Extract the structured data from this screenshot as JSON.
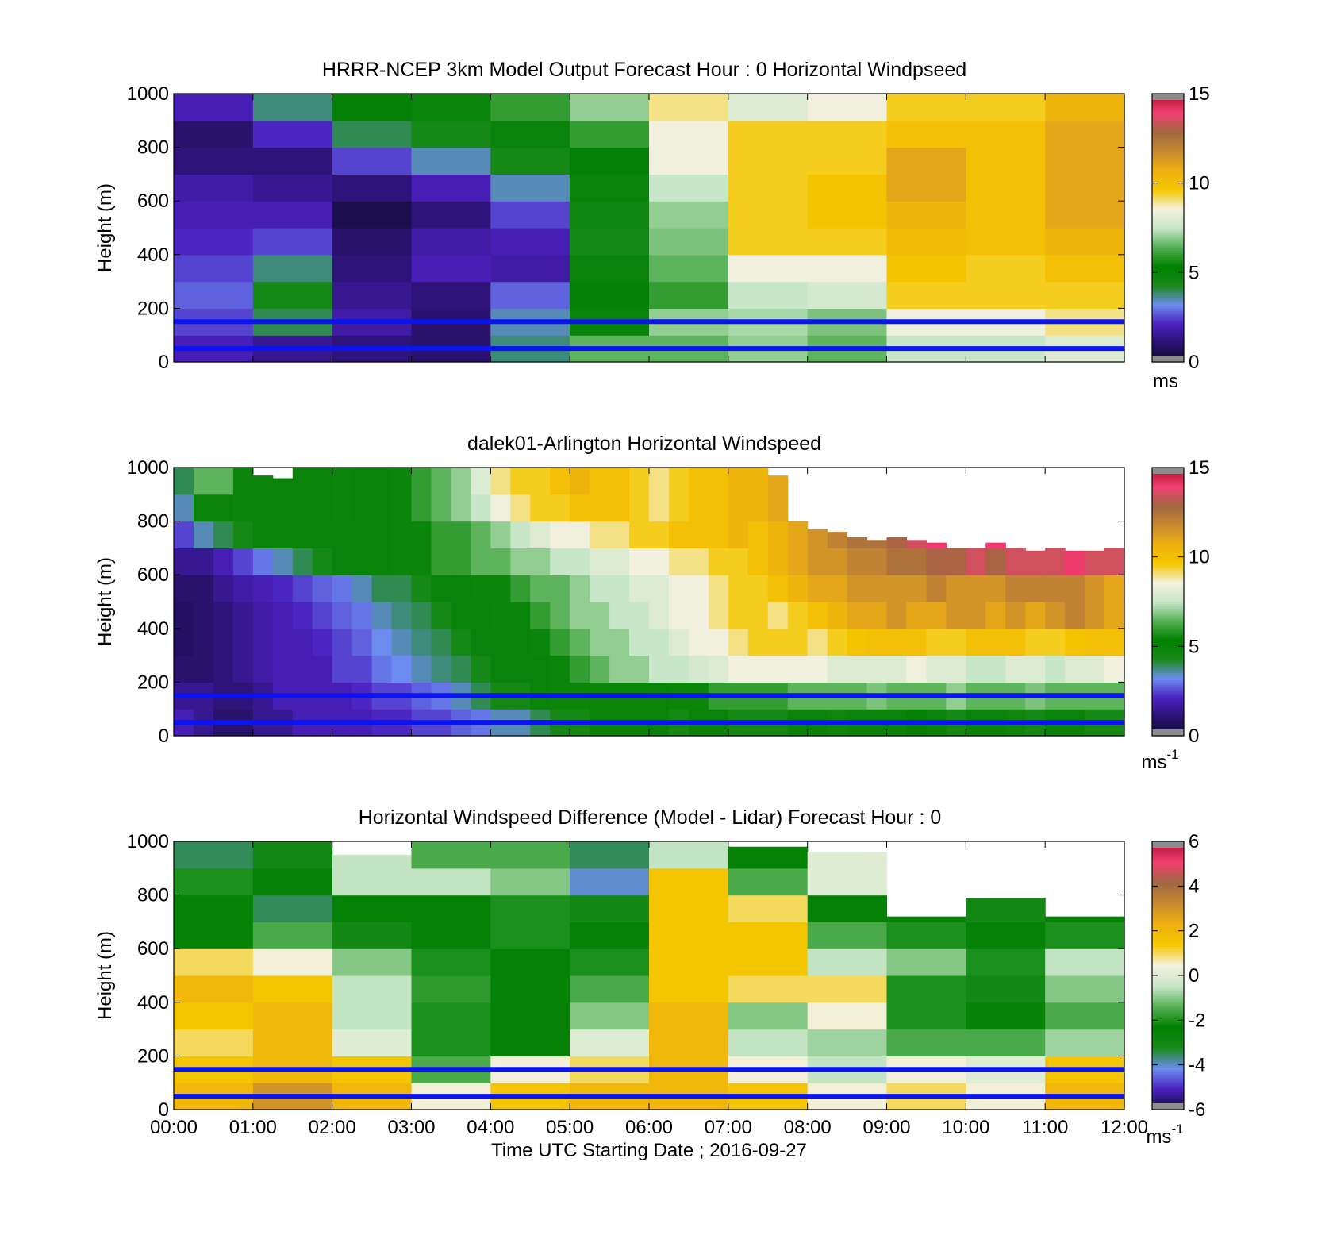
{
  "colormap_speed": [
    "#0e0b30",
    "#2a1270",
    "#4a20c0",
    "#6c8cf0",
    "#1a8a1a",
    "#008000",
    "#55b055",
    "#c8e6c8",
    "#f4f1e0",
    "#f5c800",
    "#efb010",
    "#c88a30",
    "#a06840",
    "#f04070",
    "#b01030"
  ],
  "colormap_diff": [
    "#0e0b30",
    "#4a20c0",
    "#6c8cf0",
    "#1a8a1a",
    "#008000",
    "#55b055",
    "#c8e6c8",
    "#f4f1e0",
    "#f5c800",
    "#efb010",
    "#c88a30",
    "#a06840",
    "#f04070",
    "#b01030"
  ],
  "chart_data": [
    {
      "type": "heatmap",
      "title": "HRRR-NCEP 3km Model Output   Forecast Hour : 0 Horizontal Windpseed",
      "ylabel": "Height (m)",
      "xlabel": "",
      "ylim": [
        0,
        1000
      ],
      "yticks": [
        "0",
        "200",
        "400",
        "600",
        "800",
        "1000"
      ],
      "clim": [
        0,
        15
      ],
      "cticks": [
        "0",
        "5",
        "10",
        "15"
      ],
      "unit": "ms",
      "unit_sup": "",
      "hlines": [
        50,
        150
      ],
      "columns": 12,
      "rows": 10,
      "values": [
        [
          2.0,
          1.5,
          1.2,
          1.0,
          3.8,
          6.5,
          6.5,
          7.0,
          6.5,
          7.5,
          7.5,
          8.0
        ],
        [
          2.5,
          4.0,
          1.8,
          1.0,
          3.5,
          5.0,
          7.0,
          7.2,
          6.8,
          8.5,
          8.5,
          9.0
        ],
        [
          2.8,
          4.5,
          1.5,
          1.2,
          2.8,
          5.2,
          6.0,
          7.5,
          7.8,
          9.5,
          9.5,
          9.5
        ],
        [
          2.5,
          3.8,
          1.2,
          2.0,
          1.8,
          5.0,
          6.5,
          8.5,
          8.5,
          9.8,
          9.5,
          10.0
        ],
        [
          2.2,
          2.5,
          1.0,
          1.8,
          2.0,
          4.5,
          6.8,
          9.5,
          9.5,
          10.2,
          10.0,
          10.5
        ],
        [
          2.0,
          2.0,
          0.5,
          1.2,
          2.5,
          4.8,
          7.0,
          9.5,
          9.8,
          10.5,
          10.0,
          11.0
        ],
        [
          1.8,
          1.5,
          1.2,
          2.0,
          3.5,
          5.0,
          7.5,
          9.5,
          9.8,
          11.0,
          10.0,
          11.0
        ],
        [
          1.2,
          1.2,
          2.5,
          3.5,
          4.5,
          5.2,
          8.5,
          9.5,
          9.5,
          11.0,
          10.0,
          11.0
        ],
        [
          1.0,
          2.2,
          4.0,
          4.5,
          5.0,
          6.0,
          8.5,
          9.5,
          9.5,
          10.0,
          10.0,
          11.0
        ],
        [
          2.0,
          3.8,
          5.2,
          5.0,
          6.0,
          7.0,
          9.0,
          8.0,
          8.5,
          9.5,
          9.5,
          10.5
        ]
      ]
    },
    {
      "type": "heatmap",
      "title": "dalek01-Arlington  Horizontal Windspeed",
      "ylabel": "Height (m)",
      "xlabel": "",
      "ylim": [
        0,
        1000
      ],
      "yticks": [
        "0",
        "200",
        "400",
        "600",
        "800",
        "1000"
      ],
      "clim": [
        0,
        15
      ],
      "cticks": [
        "0",
        "5",
        "10",
        "15"
      ],
      "unit": "ms",
      "unit_sup": "-1",
      "hlines": [
        50,
        150
      ],
      "columns": 48,
      "rows": 10,
      "top_height_profile": [
        1000,
        1000,
        1000,
        1000,
        970,
        960,
        1000,
        1000,
        1000,
        1000,
        1000,
        1000,
        1000,
        1000,
        1000,
        1000,
        1000,
        1000,
        1000,
        1000,
        1000,
        1000,
        1000,
        1000,
        1000,
        1000,
        1000,
        1000,
        1000,
        1000,
        970,
        800,
        770,
        760,
        740,
        730,
        740,
        730,
        720,
        700,
        700,
        720,
        700,
        690,
        700,
        690,
        690,
        700
      ],
      "values": [
        [
          2.0,
          1.5,
          1.0,
          1.0,
          1.5,
          1.5,
          2.0,
          2.0,
          2.0,
          2.0,
          2.2,
          2.2,
          2.5,
          2.5,
          2.8,
          3.0,
          3.5,
          3.5,
          4.0,
          4.5,
          4.5,
          5.0,
          5.0,
          5.0,
          5.0,
          4.5,
          5.0,
          5.0,
          4.5,
          4.5,
          4.5,
          5.0,
          5.0,
          4.8,
          5.0,
          5.0,
          5.0,
          5.2,
          5.0,
          4.5,
          5.0,
          5.0,
          4.8,
          4.5,
          5.0,
          5.0,
          4.5,
          4.5
        ],
        [
          1.5,
          1.5,
          1.2,
          1.2,
          1.5,
          2.0,
          2.0,
          2.0,
          2.0,
          2.2,
          2.5,
          2.5,
          2.8,
          3.0,
          3.5,
          4.0,
          4.5,
          4.5,
          5.0,
          5.5,
          5.5,
          5.0,
          5.0,
          5.0,
          5.0,
          5.5,
          5.5,
          6.0,
          6.0,
          6.0,
          6.0,
          6.5,
          6.5,
          6.5,
          6.5,
          6.8,
          6.5,
          6.5,
          6.5,
          7.0,
          6.5,
          6.5,
          6.5,
          6.8,
          6.5,
          6.5,
          6.5,
          6.5
        ],
        [
          1.0,
          1.0,
          1.2,
          1.5,
          1.8,
          2.0,
          2.0,
          2.0,
          2.5,
          2.5,
          3.0,
          3.2,
          3.5,
          3.8,
          4.0,
          4.5,
          5.0,
          5.0,
          5.0,
          5.5,
          6.0,
          6.5,
          7.0,
          7.0,
          7.5,
          7.5,
          7.8,
          8.0,
          8.5,
          8.5,
          8.5,
          8.5,
          8.5,
          8.0,
          8.0,
          8.0,
          8.0,
          8.5,
          8.0,
          8.0,
          7.5,
          7.5,
          8.0,
          8.0,
          7.5,
          8.0,
          8.0,
          8.5
        ],
        [
          0.8,
          1.0,
          1.2,
          1.5,
          1.8,
          2.0,
          2.0,
          2.2,
          2.5,
          2.8,
          3.2,
          3.5,
          3.8,
          4.0,
          4.5,
          5.0,
          5.0,
          5.0,
          5.5,
          6.0,
          6.5,
          7.0,
          7.0,
          7.5,
          7.5,
          8.0,
          8.5,
          8.5,
          9.0,
          9.5,
          9.5,
          9.5,
          9.0,
          9.5,
          9.8,
          10.0,
          10.0,
          10.0,
          9.5,
          9.5,
          10.0,
          10.0,
          10.0,
          9.5,
          9.5,
          9.8,
          10.0,
          10.0
        ],
        [
          0.8,
          1.0,
          1.2,
          1.5,
          1.8,
          2.0,
          2.2,
          2.5,
          2.8,
          3.0,
          3.5,
          3.8,
          4.0,
          4.5,
          5.0,
          5.0,
          5.5,
          5.5,
          6.0,
          6.5,
          7.0,
          7.0,
          7.5,
          7.5,
          8.0,
          8.5,
          8.5,
          9.0,
          9.5,
          9.5,
          9.0,
          9.5,
          10.0,
          10.5,
          11.0,
          11.0,
          11.5,
          11.0,
          11.0,
          11.5,
          11.5,
          11.0,
          11.5,
          11.0,
          11.5,
          12.0,
          11.5,
          11.0
        ],
        [
          1.0,
          1.0,
          1.5,
          1.8,
          2.0,
          2.2,
          2.5,
          2.8,
          3.0,
          3.5,
          4.0,
          4.0,
          4.5,
          5.0,
          5.0,
          5.5,
          5.5,
          6.0,
          6.5,
          6.5,
          7.0,
          7.5,
          7.5,
          8.0,
          8.0,
          8.5,
          8.5,
          9.0,
          9.5,
          9.5,
          10.0,
          10.5,
          11.0,
          11.0,
          11.5,
          11.5,
          11.5,
          11.5,
          12.0,
          11.5,
          11.5,
          11.5,
          12.0,
          12.0,
          12.0,
          12.0,
          11.5,
          11.0
        ],
        [
          1.5,
          1.5,
          2.0,
          2.5,
          3.0,
          3.5,
          4.0,
          4.5,
          5.0,
          5.0,
          5.0,
          5.5,
          5.5,
          6.0,
          6.0,
          6.5,
          6.5,
          7.0,
          7.0,
          7.5,
          7.5,
          8.0,
          8.0,
          8.5,
          8.5,
          9.0,
          9.0,
          9.5,
          9.5,
          10.0,
          10.5,
          11.0,
          11.5,
          11.5,
          12.0,
          12.0,
          12.5,
          12.5,
          13.0,
          13.0,
          13.5,
          13.0,
          13.5,
          13.5,
          13.5,
          14.0,
          13.5,
          13.5
        ],
        [
          2.5,
          3.5,
          4.0,
          4.5,
          5.0,
          5.0,
          5.0,
          5.0,
          5.0,
          5.0,
          5.0,
          5.5,
          5.5,
          6.0,
          6.0,
          6.5,
          7.0,
          7.5,
          8.0,
          8.5,
          8.5,
          9.0,
          9.0,
          9.5,
          9.5,
          10.0,
          10.0,
          10.0,
          10.5,
          10.0,
          10.5,
          11.0,
          11.5,
          12.0,
          12.5,
          12.5,
          13.0,
          13.5,
          14.0,
          14.0,
          14.0,
          14.0,
          14.0,
          14.0,
          14.0,
          14.0,
          14.0,
          14.0
        ],
        [
          3.5,
          5.0,
          5.0,
          5.5,
          5.0,
          5.0,
          5.0,
          5.0,
          5.5,
          5.0,
          5.0,
          5.5,
          6.0,
          6.5,
          7.0,
          7.5,
          8.5,
          9.0,
          9.5,
          9.5,
          10.0,
          10.0,
          10.0,
          9.5,
          9.0,
          9.5,
          10.0,
          10.0,
          10.5,
          10.5,
          11.0,
          11.0,
          11.5,
          12.0,
          12.0,
          12.5,
          12.5,
          13.0,
          13.5,
          14.0,
          14.0,
          14.0,
          14.0,
          14.0,
          14.0,
          14.0,
          14.0,
          14.0
        ],
        [
          4.0,
          6.5,
          6.5,
          5.5,
          5.0,
          5.0,
          5.0,
          5.0,
          5.5,
          5.0,
          5.0,
          5.5,
          6.0,
          6.5,
          7.0,
          8.0,
          9.0,
          9.5,
          9.5,
          10.0,
          10.5,
          10.0,
          10.0,
          9.5,
          9.0,
          9.5,
          10.0,
          10.0,
          10.5,
          10.5,
          11.0,
          11.5,
          12.0,
          12.0,
          12.0,
          12.5,
          13.0,
          13.5,
          14.0,
          14.0,
          14.0,
          14.0,
          14.0,
          14.0,
          14.0,
          14.0,
          14.0,
          14.5
        ]
      ]
    },
    {
      "type": "heatmap",
      "title": "Horizontal Windspeed Difference (Model - Lidar) Forecast Hour : 0",
      "ylabel": "Height (m)",
      "xlabel": "Time UTC  Starting Date ; 2016-09-27",
      "xticks": [
        "00:00",
        "01:00",
        "02:00",
        "03:00",
        "04:00",
        "05:00",
        "06:00",
        "07:00",
        "08:00",
        "09:00",
        "10:00",
        "11:00",
        "12:00"
      ],
      "ylim": [
        0,
        1000
      ],
      "yticks": [
        "0",
        "200",
        "400",
        "600",
        "800",
        "1000"
      ],
      "clim": [
        -6,
        6
      ],
      "cticks": [
        "-6",
        "-4",
        "-2",
        "0",
        "2",
        "4",
        "6"
      ],
      "unit": "ms",
      "unit_sup": "-1",
      "hlines": [
        50,
        150
      ],
      "columns": 12,
      "rows": 10,
      "top_height_profile": [
        1000,
        1000,
        950,
        1000,
        1000,
        1000,
        1000,
        980,
        960,
        720,
        790,
        720
      ],
      "values": [
        [
          2.0,
          3.0,
          2.0,
          0.5,
          1.5,
          2.0,
          2.0,
          1.5,
          0.5,
          1.0,
          0.5,
          2.0
        ],
        [
          1.5,
          2.0,
          1.5,
          -1.5,
          0.5,
          1.0,
          2.0,
          0.5,
          -0.5,
          0.5,
          0.0,
          1.5
        ],
        [
          1.0,
          2.0,
          0.0,
          -2.0,
          -2.5,
          0.0,
          2.0,
          -0.5,
          -0.8,
          -1.5,
          -1.5,
          -0.8
        ],
        [
          1.5,
          2.0,
          -0.5,
          -2.0,
          -2.5,
          -1.0,
          2.0,
          -1.0,
          0.5,
          -2.0,
          -2.5,
          -1.5
        ],
        [
          2.0,
          1.5,
          -0.5,
          -1.8,
          -2.5,
          -1.5,
          1.5,
          1.0,
          1.0,
          -2.0,
          -3.0,
          -1.0
        ],
        [
          1.0,
          0.5,
          -1.0,
          -2.0,
          -2.5,
          -2.0,
          1.5,
          1.5,
          -0.5,
          -1.0,
          -2.0,
          -0.5
        ],
        [
          -2.5,
          -1.5,
          -3.0,
          -2.5,
          -2.0,
          -2.5,
          1.5,
          1.5,
          -1.5,
          -2.0,
          -2.5,
          -2.0
        ],
        [
          -2.5,
          -3.5,
          -2.5,
          -2.5,
          -2.0,
          -3.0,
          1.5,
          1.0,
          -2.5,
          -2.5,
          -3.0,
          -2.5
        ],
        [
          -2.0,
          -2.5,
          -0.5,
          -0.5,
          -1.0,
          -4.0,
          1.5,
          -1.5,
          0.0,
          0.0,
          0.0,
          0.0
        ],
        [
          -3.5,
          -3.0,
          -0.5,
          -1.5,
          -1.5,
          -3.5,
          -0.5,
          -2.5,
          0.0,
          0.0,
          0.0,
          0.0
        ]
      ]
    }
  ]
}
